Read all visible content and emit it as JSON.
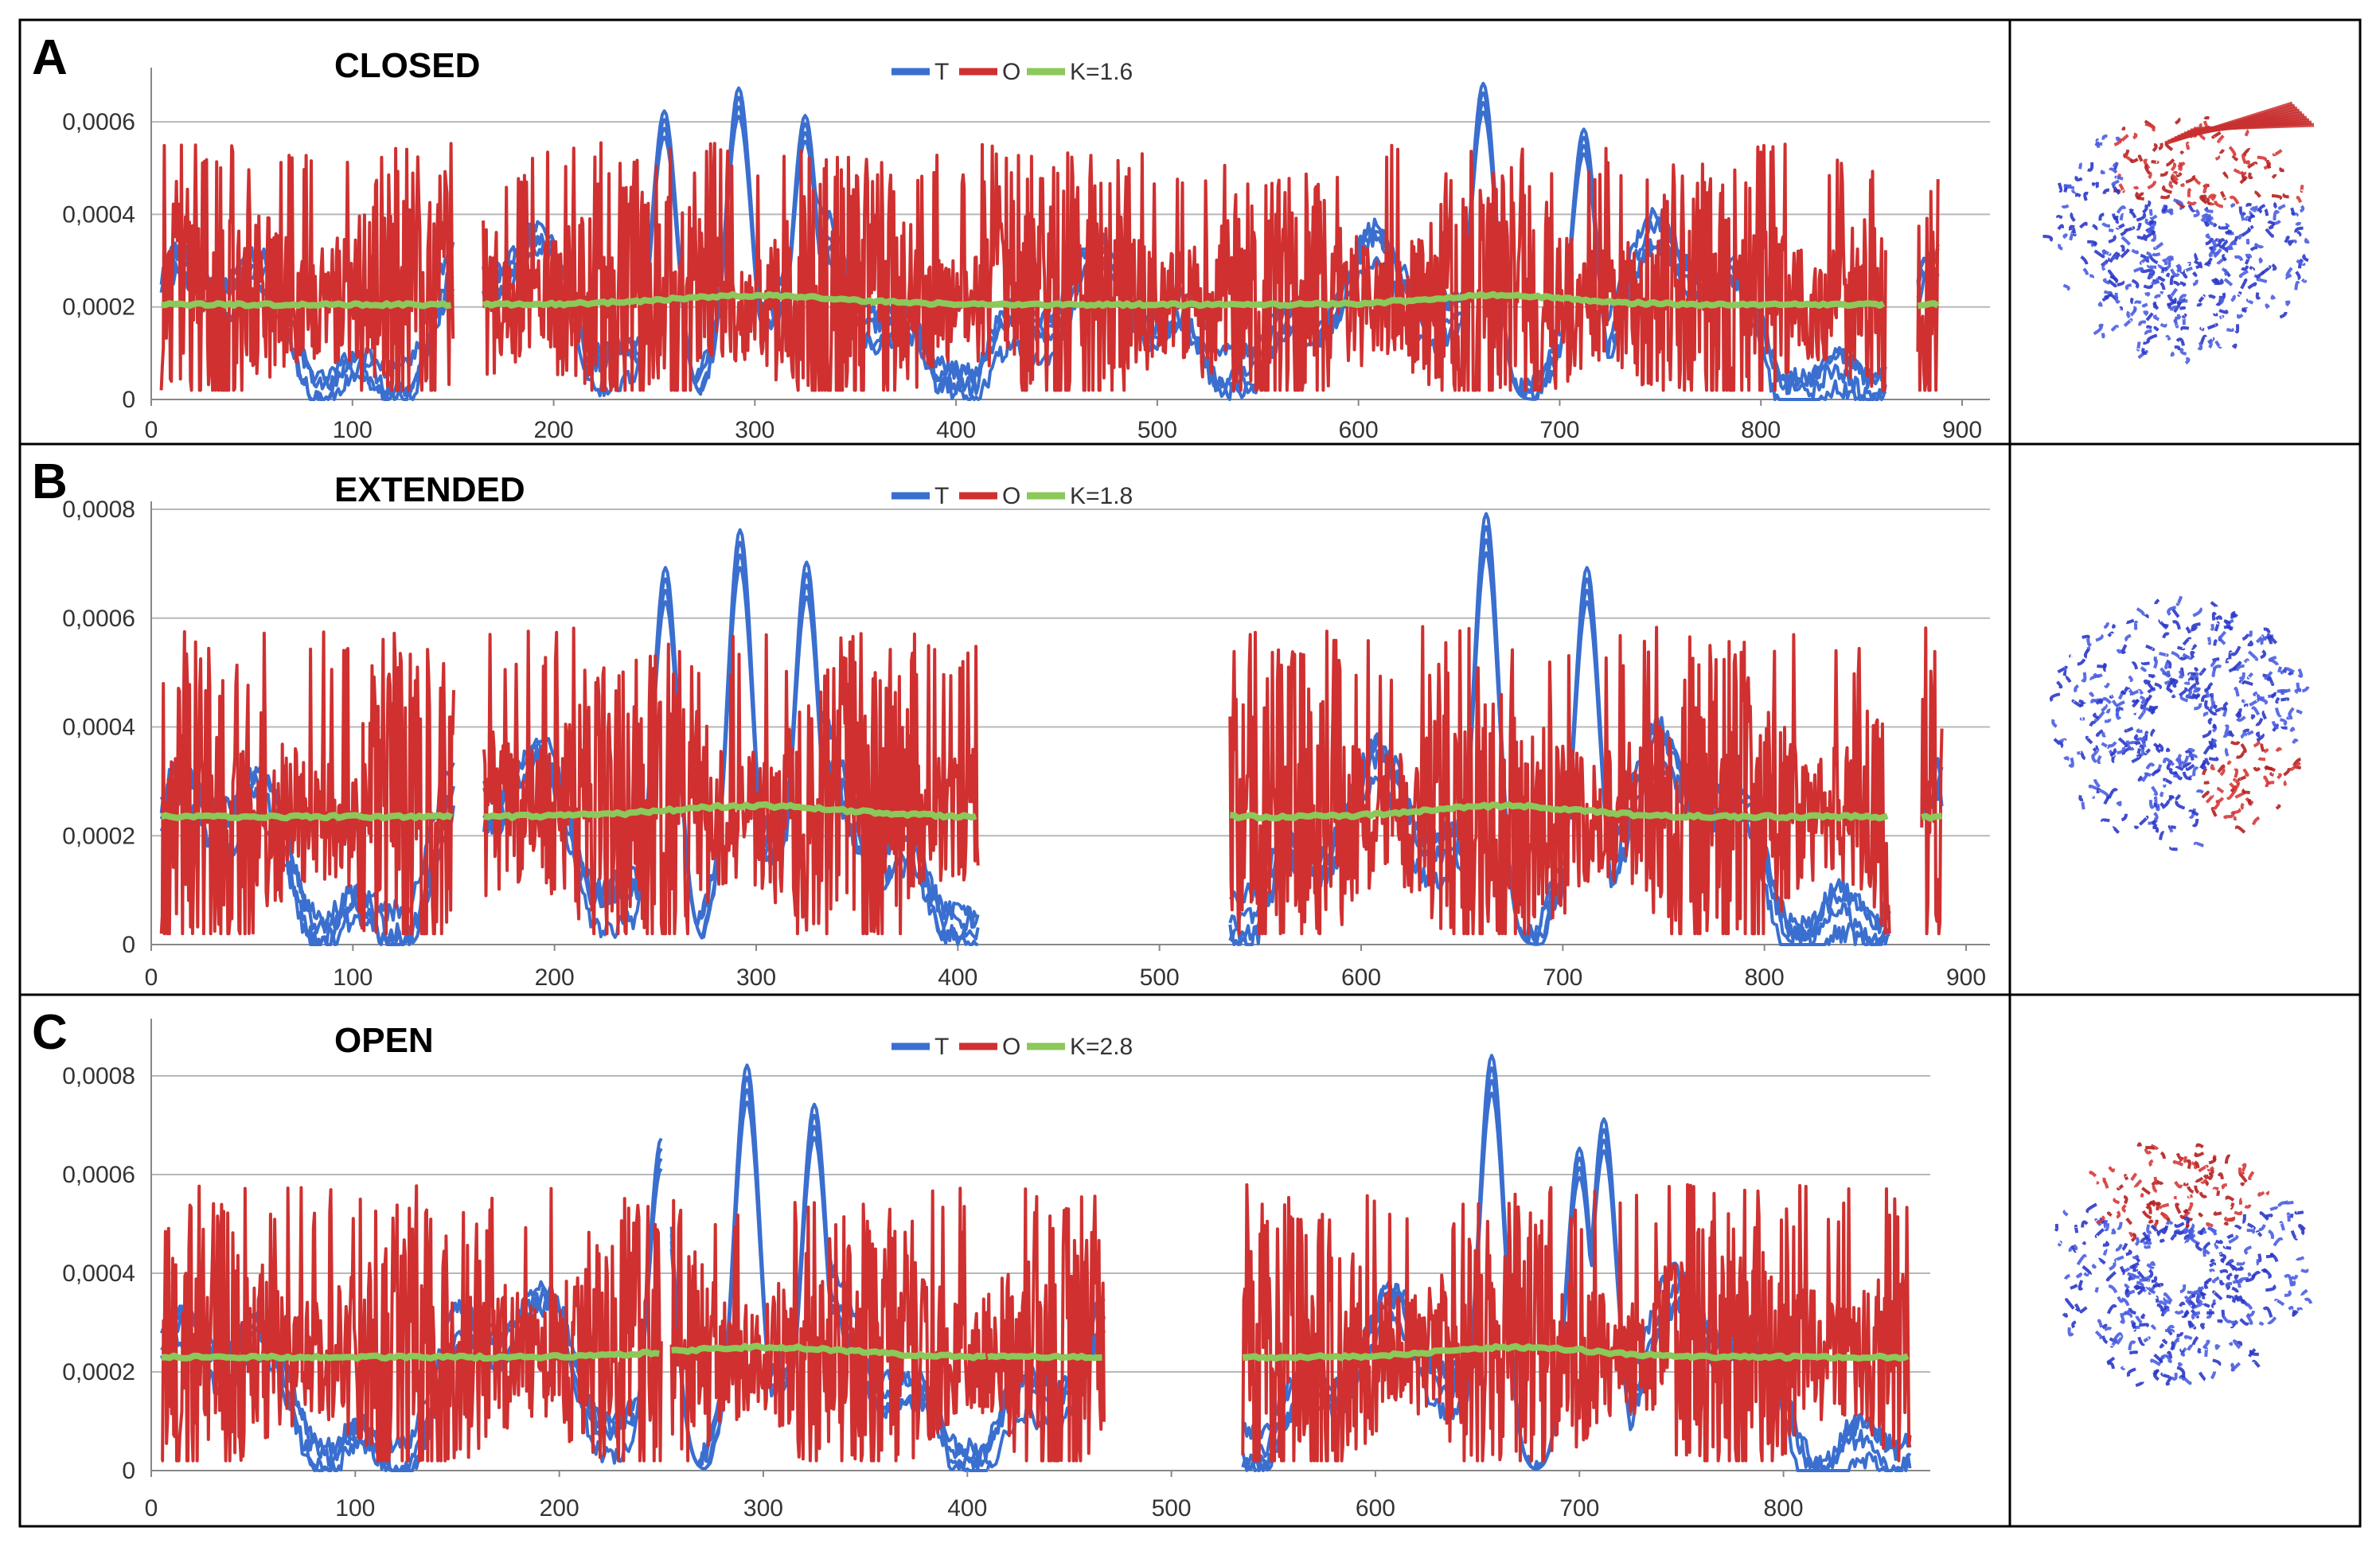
{
  "figure": {
    "colors": {
      "T": "#3a6fcf",
      "O": "#d03030",
      "K": "#8cc85a",
      "grid": "#b8b8b8",
      "border": "#000000"
    },
    "structure_icon": "protein-ring-structure"
  },
  "chart_data": [
    {
      "type": "line",
      "panel": "A",
      "title": "CLOSED",
      "legend": {
        "T": "T",
        "O": "O",
        "K": "K=1.6"
      },
      "xlim": [
        0,
        900
      ],
      "ylim": [
        0,
        0.0007
      ],
      "xticks": [
        "0",
        "100",
        "200",
        "300",
        "400",
        "500",
        "600",
        "700",
        "800",
        "900"
      ],
      "yticks": [
        "0",
        "0,0002",
        "0,0004",
        "0,0006"
      ],
      "ytick_values": [
        0,
        0.0002,
        0.0004,
        0.0006
      ],
      "segments": [
        [
          5,
          150
        ],
        [
          165,
          862
        ],
        [
          878,
          888
        ]
      ],
      "k_level": 0.000205,
      "t_peaks": [
        [
          255,
          0.00063
        ],
        [
          292,
          0.00068
        ],
        [
          325,
          0.00062
        ],
        [
          662,
          0.00069
        ],
        [
          712,
          0.00059
        ]
      ],
      "t_valley_base": 3e-05,
      "series": [
        {
          "name": "T",
          "description": "fluctuation profile, blue"
        },
        {
          "name": "O",
          "description": "fluctuation profile, red"
        },
        {
          "name": "K=1.6",
          "description": "reference level, green"
        }
      ]
    },
    {
      "type": "line",
      "panel": "B",
      "title": "EXTENDED",
      "legend": {
        "T": "T",
        "O": "O",
        "K": "K=1.8"
      },
      "xlim": [
        0,
        900
      ],
      "ylim": [
        0,
        0.0008
      ],
      "xticks": [
        "0",
        "100",
        "200",
        "300",
        "400",
        "500",
        "600",
        "700",
        "800",
        "900"
      ],
      "yticks": [
        "0",
        "0,0002",
        "0,0004",
        "0,0006",
        "0,0008"
      ],
      "ytick_values": [
        0,
        0.0002,
        0.0004,
        0.0006,
        0.0008
      ],
      "segments": [
        [
          5,
          150
        ],
        [
          165,
          410
        ],
        [
          535,
          862
        ],
        [
          878,
          888
        ]
      ],
      "k_level": 0.000235,
      "t_peaks": [
        [
          255,
          0.0007
        ],
        [
          292,
          0.00077
        ],
        [
          325,
          0.00071
        ],
        [
          662,
          0.0008
        ],
        [
          712,
          0.0007
        ]
      ],
      "t_valley_base": 2e-05,
      "series": [
        {
          "name": "T",
          "description": "fluctuation profile, blue"
        },
        {
          "name": "O",
          "description": "fluctuation profile, red"
        },
        {
          "name": "K=1.8",
          "description": "reference level, green"
        }
      ]
    },
    {
      "type": "line",
      "panel": "C",
      "title": "OPEN",
      "legend": {
        "T": "T",
        "O": "O",
        "K": "K=2.8"
      },
      "xlim": [
        0,
        870
      ],
      "ylim": [
        0,
        0.0009
      ],
      "xticks": [
        "0",
        "100",
        "200",
        "300",
        "400",
        "500",
        "600",
        "700",
        "800"
      ],
      "yticks": [
        "0",
        "0,0002",
        "0,0004",
        "0,0006",
        "0,0008"
      ],
      "ytick_values": [
        0,
        0.0002,
        0.0004,
        0.0006,
        0.0008
      ],
      "segments": [
        [
          5,
          250
        ],
        [
          255,
          410
        ],
        [
          410,
          467
        ],
        [
          535,
          862
        ]
      ],
      "k_level": 0.00023,
      "t_peaks": [
        [
          250,
          0.00068
        ],
        [
          292,
          0.00083
        ],
        [
          325,
          0.00075
        ],
        [
          657,
          0.00085
        ],
        [
          700,
          0.00066
        ],
        [
          712,
          0.00072
        ]
      ],
      "t_valley_base": 1e-05,
      "series": [
        {
          "name": "T",
          "description": "fluctuation profile, blue"
        },
        {
          "name": "O",
          "description": "fluctuation profile, red"
        },
        {
          "name": "K=2.8",
          "description": "reference level, green"
        }
      ]
    }
  ]
}
